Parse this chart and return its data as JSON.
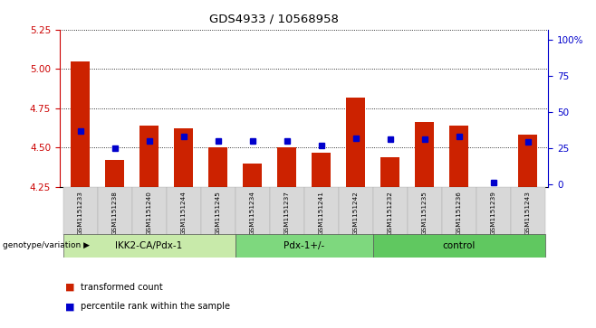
{
  "title": "GDS4933 / 10568958",
  "samples": [
    "GSM1151233",
    "GSM1151238",
    "GSM1151240",
    "GSM1151244",
    "GSM1151245",
    "GSM1151234",
    "GSM1151237",
    "GSM1151241",
    "GSM1151242",
    "GSM1151232",
    "GSM1151235",
    "GSM1151236",
    "GSM1151239",
    "GSM1151243"
  ],
  "red_values": [
    5.05,
    4.42,
    4.64,
    4.62,
    4.5,
    4.4,
    4.5,
    4.47,
    4.82,
    4.44,
    4.66,
    4.64,
    4.25,
    4.58
  ],
  "blue_pct": [
    37,
    25,
    30,
    33,
    30,
    30,
    30,
    27,
    32,
    31,
    31,
    33,
    1,
    29
  ],
  "groups": [
    {
      "label": "IKK2-CA/Pdx-1",
      "start": 0,
      "end": 5,
      "color": "#c8eaaa"
    },
    {
      "label": "Pdx-1+/-",
      "start": 5,
      "end": 9,
      "color": "#7ed87e"
    },
    {
      "label": "control",
      "start": 9,
      "end": 14,
      "color": "#60c860"
    }
  ],
  "ylim_left": [
    4.25,
    5.25
  ],
  "yticks_left": [
    4.25,
    4.5,
    4.75,
    5.0,
    5.25
  ],
  "yticks_right": [
    0,
    25,
    50,
    75,
    100
  ],
  "ylabel_left_color": "#cc0000",
  "ylabel_right_color": "#0000cc",
  "bar_color": "#cc2200",
  "dot_color": "#0000cc",
  "bg_color": "#ffffff",
  "bar_width": 0.55,
  "legend_red": "transformed count",
  "legend_blue": "percentile rank within the sample",
  "genotype_label": "genotype/variation"
}
